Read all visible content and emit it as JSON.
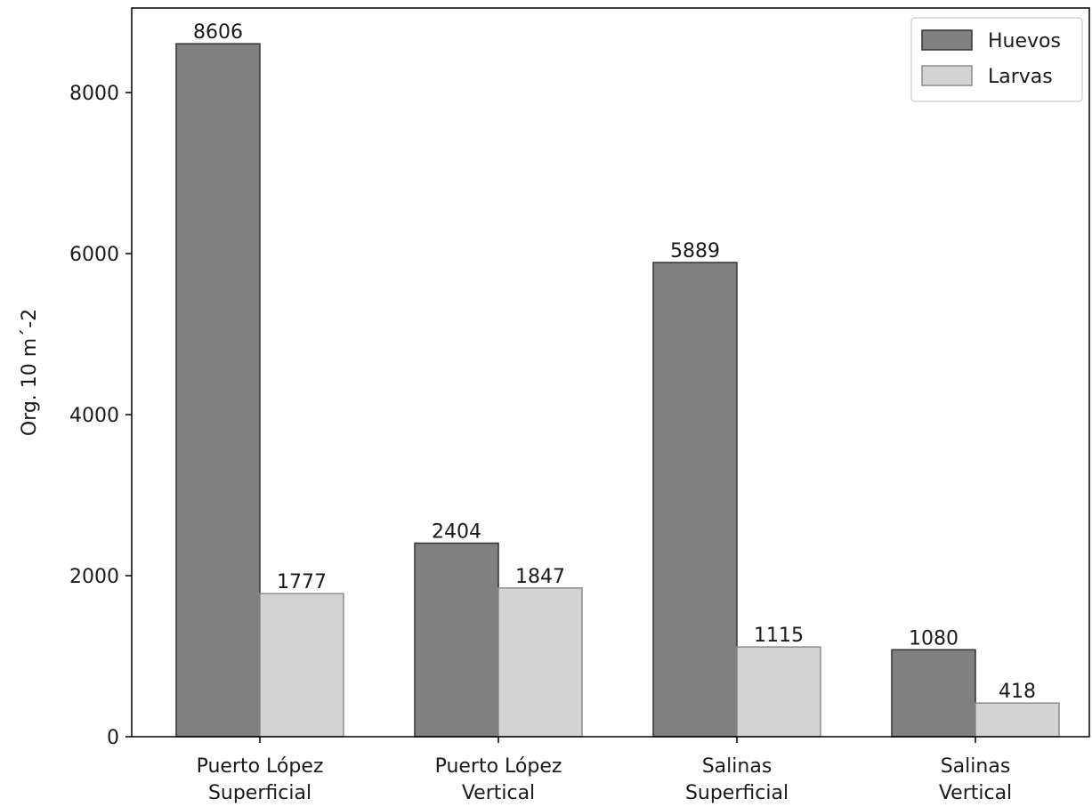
{
  "chart_data": {
    "type": "bar",
    "title": "",
    "xlabel": "",
    "ylabel": "Org. 10 m´-2",
    "categories": [
      [
        "Puerto López",
        "Superficial"
      ],
      [
        "Puerto López",
        "Vertical"
      ],
      [
        "Salinas",
        "Superficial"
      ],
      [
        "Salinas",
        "Vertical"
      ]
    ],
    "series": [
      {
        "name": "Huevos",
        "values": [
          8606,
          2404,
          5889,
          1080
        ],
        "color": "#808080"
      },
      {
        "name": "Larvas",
        "values": [
          1777,
          1847,
          1115,
          418
        ],
        "color": "#d3d3d3"
      }
    ],
    "ylim": [
      0,
      9050
    ],
    "yticks": [
      0,
      2000,
      4000,
      6000,
      8000
    ],
    "grid": false,
    "legend_position": "top-right",
    "data_labels": true
  }
}
